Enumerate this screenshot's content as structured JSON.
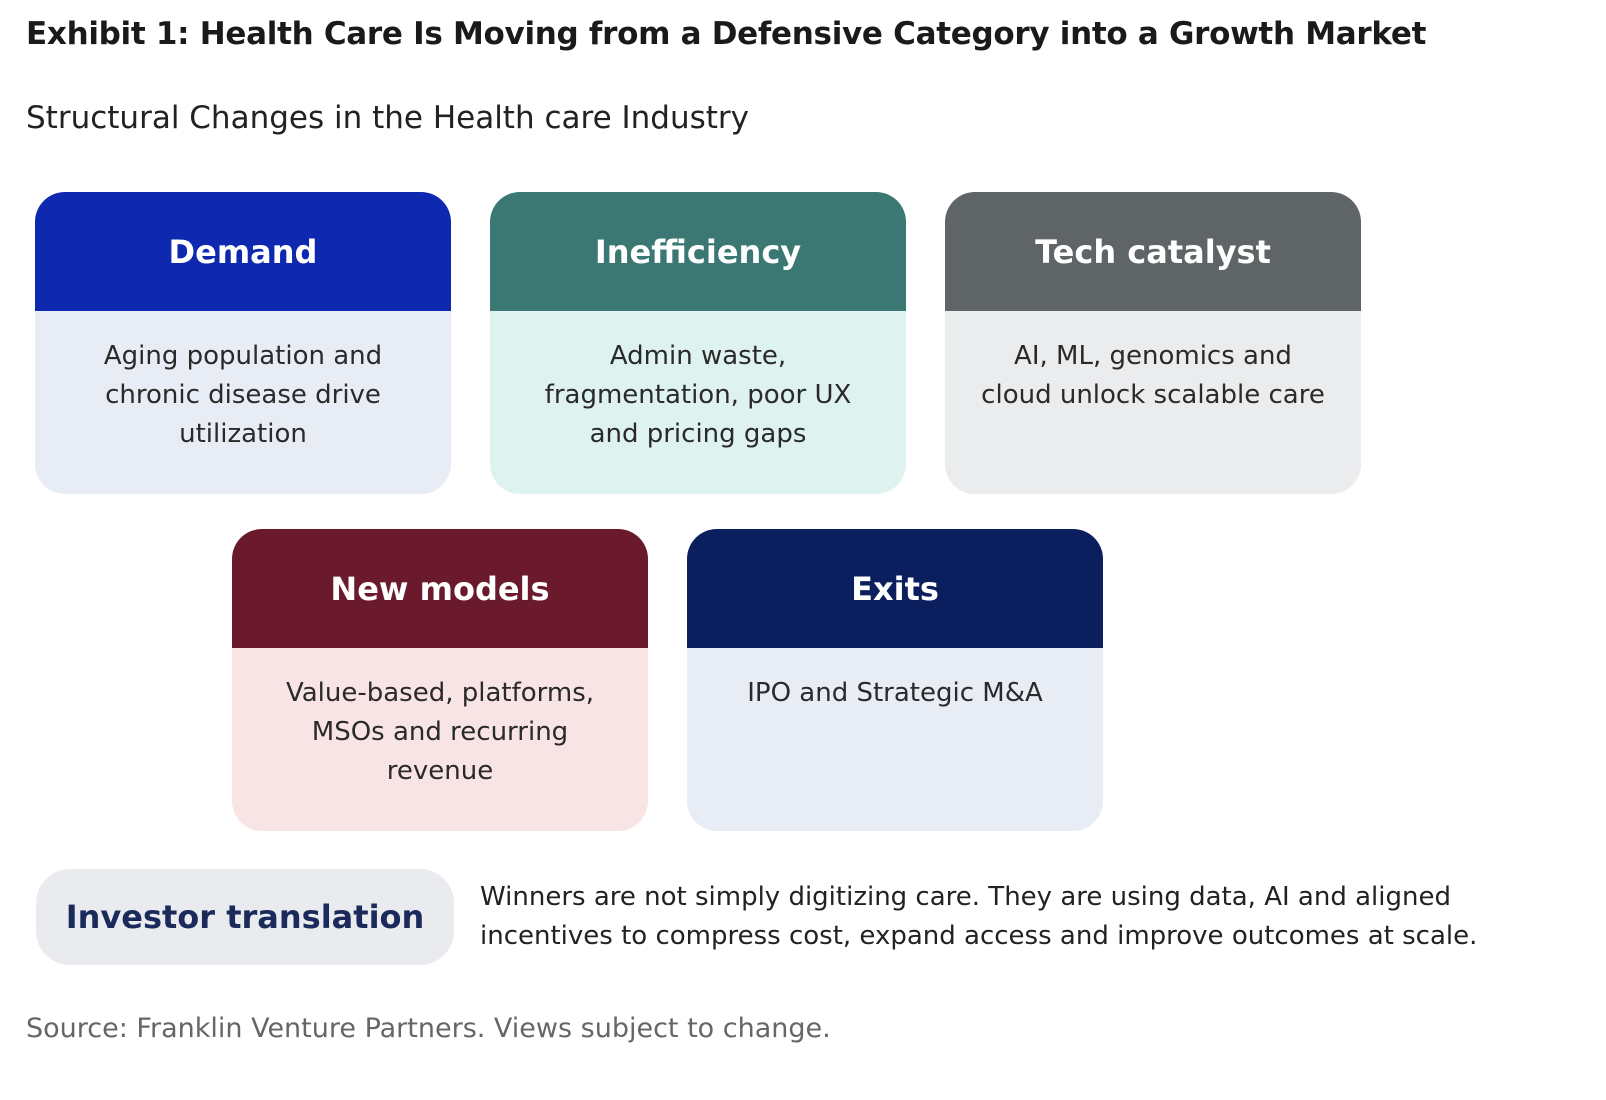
{
  "title": "Exhibit 1: Health Care Is Moving from a Defensive Category into a Growth Market",
  "subtitle": "Structural Changes in the Health care Industry",
  "cards": [
    {
      "heading": "Demand",
      "text": "Aging population and chronic disease drive utilization",
      "header_color": "#0e28b0",
      "body_color": "#e8edf5"
    },
    {
      "heading": "Inefficiency",
      "text": "Admin waste, fragmentation, poor UX and pricing gaps",
      "header_color": "#3b7873",
      "body_color": "#def3f0"
    },
    {
      "heading": "Tech catalyst",
      "text": "AI, ML, genomics and cloud unlock scalable care",
      "header_color": "#5f6466",
      "body_color": "#ebecee"
    },
    {
      "heading": "New models",
      "text": "Value-based, platforms, MSOs and recurring revenue",
      "header_color": "#6b1a2e",
      "body_color": "#f8e4e4"
    },
    {
      "heading": "Exits",
      "text": "IPO and Strategic M&A",
      "header_color": "#0b1e5e",
      "body_color": "#e8edf5"
    }
  ],
  "investor": {
    "label": "Investor translation",
    "text": "Winners are not simply digitizing care. They are using data, AI and aligned incentives to compress cost, expand access and improve outcomes at scale."
  },
  "source": "Source: Franklin Venture Partners. Views subject to change."
}
